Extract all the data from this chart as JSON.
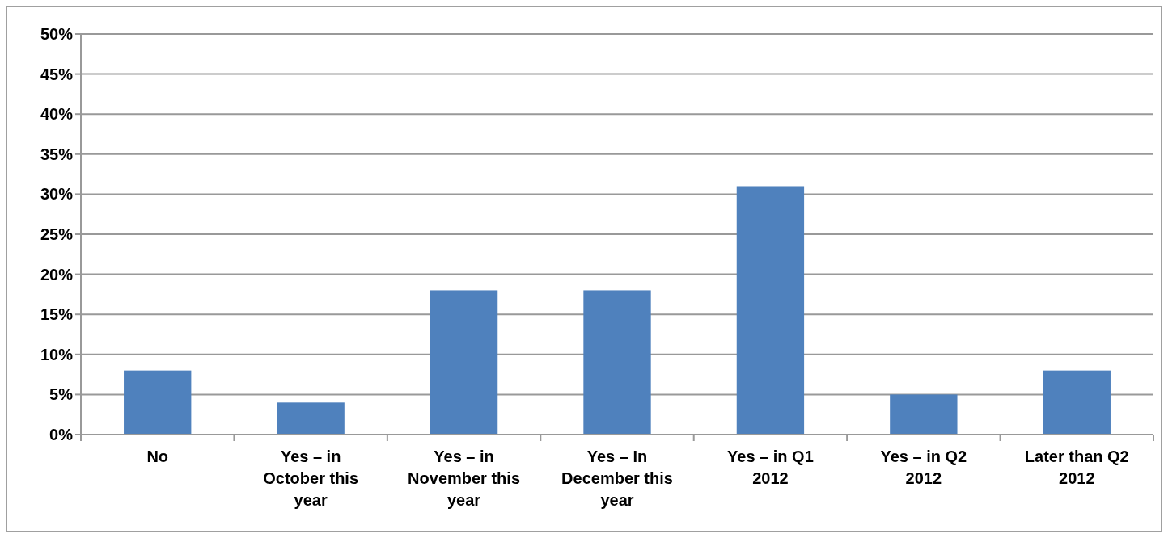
{
  "chart_data": {
    "type": "bar",
    "categories": [
      "No",
      "Yes – in October this year",
      "Yes – in November this year",
      "Yes – In December this year",
      "Yes – in Q1 2012",
      "Yes – in Q2 2012",
      "Later than Q2 2012"
    ],
    "values": [
      8,
      4,
      18,
      18,
      31,
      5,
      8
    ],
    "color": "#4f81bd",
    "ylim": [
      0,
      50
    ],
    "yticks": [
      {
        "value": 0,
        "label": "0%"
      },
      {
        "value": 5,
        "label": "5%"
      },
      {
        "value": 10,
        "label": "10%"
      },
      {
        "value": 15,
        "label": "15%"
      },
      {
        "value": 20,
        "label": "20%"
      },
      {
        "value": 25,
        "label": "25%"
      },
      {
        "value": 30,
        "label": "30%"
      },
      {
        "value": 35,
        "label": "35%"
      },
      {
        "value": 40,
        "label": "40%"
      },
      {
        "value": 45,
        "label": "45%"
      },
      {
        "value": 50,
        "label": "50%"
      }
    ],
    "grid": "y"
  }
}
